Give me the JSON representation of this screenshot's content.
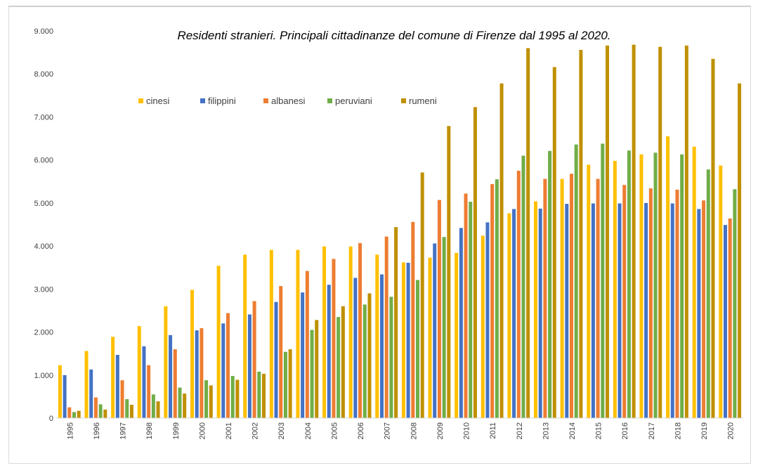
{
  "chart_data": {
    "type": "bar",
    "title": "Residenti stranieri. Principali cittadinanze del comune di Firenze dal 1995 al 2020.",
    "xlabel": "",
    "ylabel": "",
    "ylim": [
      0,
      9000
    ],
    "yticks": [
      {
        "value": 0,
        "label": "0"
      },
      {
        "value": 1000,
        "label": "1.000"
      },
      {
        "value": 2000,
        "label": "2.000"
      },
      {
        "value": 3000,
        "label": "3.000"
      },
      {
        "value": 4000,
        "label": "4.000"
      },
      {
        "value": 5000,
        "label": "5.000"
      },
      {
        "value": 6000,
        "label": "6.000"
      },
      {
        "value": 7000,
        "label": "7.000"
      },
      {
        "value": 8000,
        "label": "8.000"
      },
      {
        "value": 9000,
        "label": "9.000"
      }
    ],
    "grid": false,
    "legend_position": "top-left",
    "categories": [
      "1995",
      "1996",
      "1997",
      "1998",
      "1999",
      "2000",
      "2001",
      "2002",
      "2003",
      "2004",
      "2005",
      "2006",
      "2007",
      "2008",
      "2009",
      "2010",
      "2011",
      "2012",
      "2013",
      "2014",
      "2015",
      "2016",
      "2017",
      "2018",
      "2019",
      "2020"
    ],
    "series": [
      {
        "name": "cinesi",
        "color": "#FFC000",
        "values": [
          1230,
          1560,
          1890,
          2140,
          2600,
          2980,
          3540,
          3800,
          3910,
          3910,
          3990,
          3990,
          3800,
          3620,
          3730,
          3840,
          4240,
          4760,
          5040,
          5560,
          5890,
          5980,
          6130,
          6550,
          6310,
          5870
        ]
      },
      {
        "name": "filippini",
        "color": "#4472C4",
        "values": [
          1000,
          1130,
          1470,
          1670,
          1930,
          2040,
          2200,
          2410,
          2700,
          2920,
          3100,
          3260,
          3340,
          3610,
          4060,
          4420,
          4550,
          4860,
          4870,
          4980,
          4990,
          4990,
          5000,
          4990,
          4860,
          4490
        ]
      },
      {
        "name": "albanesi",
        "color": "#ED7D31",
        "values": [
          250,
          480,
          880,
          1230,
          1600,
          2090,
          2440,
          2720,
          3070,
          3420,
          3700,
          4070,
          4220,
          4560,
          5070,
          5220,
          5440,
          5750,
          5560,
          5680,
          5560,
          5420,
          5340,
          5310,
          5060,
          4640
        ]
      },
      {
        "name": "peruviani",
        "color": "#70AD47",
        "values": [
          140,
          320,
          440,
          550,
          710,
          880,
          980,
          1080,
          1540,
          2050,
          2350,
          2640,
          2820,
          3210,
          4210,
          5030,
          5550,
          6100,
          6210,
          6360,
          6380,
          6220,
          6170,
          6130,
          5780,
          5320
        ]
      },
      {
        "name": "rumeni",
        "color": "#BF9000",
        "values": [
          170,
          200,
          310,
          390,
          570,
          760,
          890,
          1030,
          1600,
          2280,
          2600,
          2900,
          4440,
          5710,
          6790,
          7230,
          7780,
          8600,
          8160,
          8560,
          8660,
          8680,
          8630,
          8660,
          8350,
          7780
        ]
      }
    ]
  }
}
